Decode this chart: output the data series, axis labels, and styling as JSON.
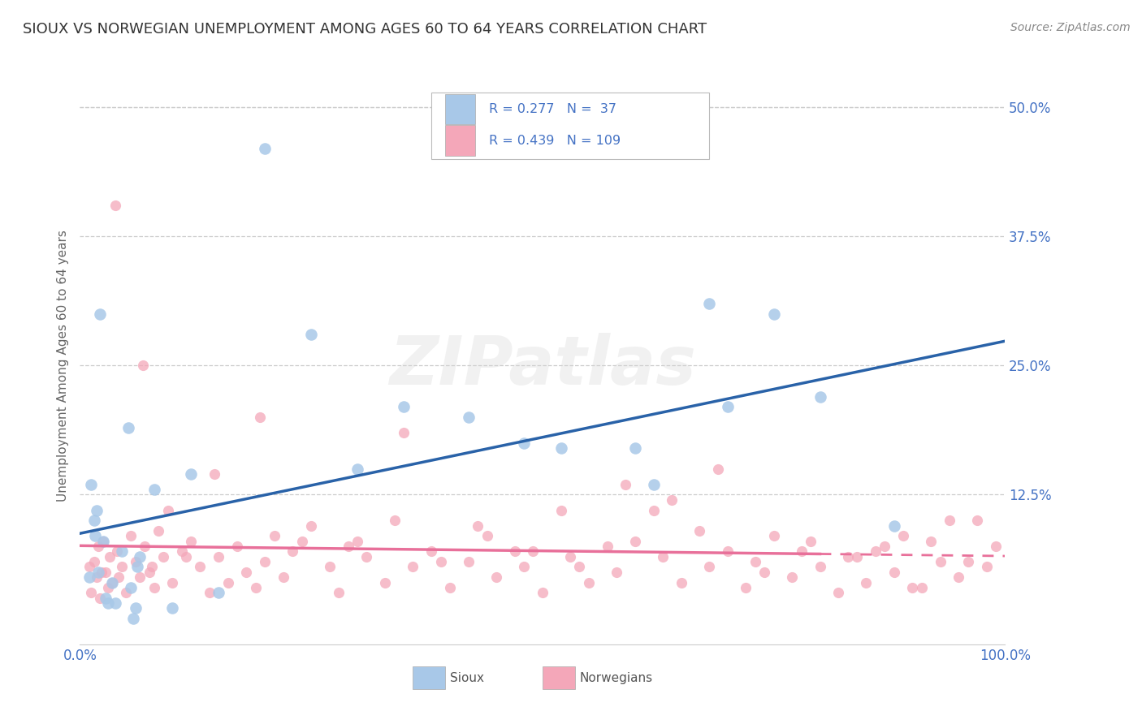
{
  "title": "SIOUX VS NORWEGIAN UNEMPLOYMENT AMONG AGES 60 TO 64 YEARS CORRELATION CHART",
  "source": "Source: ZipAtlas.com",
  "ylabel": "Unemployment Among Ages 60 to 64 years",
  "xlim": [
    0,
    100
  ],
  "ylim": [
    -2,
    52
  ],
  "background_color": "#ffffff",
  "watermark": "ZIPatlas",
  "legend_r_sioux": "0.277",
  "legend_n_sioux": "37",
  "legend_r_norw": "0.439",
  "legend_n_norw": "109",
  "sioux_color": "#A8C8E8",
  "norw_color": "#F4A7B9",
  "sioux_line_color": "#2962A8",
  "norw_line_color": "#E8709A",
  "sioux_points_x": [
    1.5,
    2.0,
    2.5,
    3.0,
    1.0,
    1.8,
    5.5,
    6.0,
    6.5,
    5.8,
    2.2,
    8.0,
    20.0,
    25.0,
    35.0,
    42.0,
    52.0,
    60.0,
    68.0,
    75.0,
    80.0,
    88.0,
    1.2,
    1.6,
    2.8,
    3.5,
    4.5,
    5.2,
    12.0,
    30.0,
    48.0,
    62.0,
    70.0,
    3.8,
    6.2,
    10.0,
    15.0
  ],
  "sioux_points_y": [
    10.0,
    5.0,
    8.0,
    2.0,
    4.5,
    11.0,
    3.5,
    1.5,
    6.5,
    0.5,
    30.0,
    13.0,
    46.0,
    28.0,
    21.0,
    20.0,
    17.0,
    17.0,
    31.0,
    30.0,
    22.0,
    9.5,
    13.5,
    8.5,
    2.5,
    4.0,
    7.0,
    19.0,
    14.5,
    15.0,
    17.5,
    13.5,
    21.0,
    2.0,
    5.5,
    1.5,
    3.0
  ],
  "norw_points_x": [
    1.0,
    1.2,
    1.5,
    1.8,
    2.0,
    2.2,
    2.5,
    2.8,
    3.0,
    3.2,
    3.5,
    4.0,
    4.5,
    5.0,
    5.5,
    6.0,
    6.5,
    7.0,
    7.5,
    8.0,
    8.5,
    9.0,
    10.0,
    11.0,
    12.0,
    13.0,
    14.0,
    15.0,
    16.0,
    17.0,
    18.0,
    19.0,
    20.0,
    21.0,
    22.0,
    23.0,
    25.0,
    27.0,
    28.0,
    30.0,
    31.0,
    33.0,
    35.0,
    36.0,
    38.0,
    40.0,
    42.0,
    44.0,
    45.0,
    47.0,
    48.0,
    50.0,
    52.0,
    53.0,
    55.0,
    57.0,
    58.0,
    60.0,
    62.0,
    63.0,
    65.0,
    67.0,
    68.0,
    70.0,
    72.0,
    73.0,
    75.0,
    77.0,
    78.0,
    80.0,
    82.0,
    84.0,
    85.0,
    87.0,
    88.0,
    90.0,
    92.0,
    93.0,
    95.0,
    97.0,
    98.0,
    3.8,
    6.8,
    9.5,
    14.5,
    19.5,
    24.0,
    29.0,
    34.0,
    39.0,
    43.0,
    49.0,
    54.0,
    59.0,
    64.0,
    69.0,
    74.0,
    79.0,
    83.0,
    86.0,
    89.0,
    91.0,
    94.0,
    96.0,
    99.0,
    2.3,
    4.2,
    7.8,
    11.5
  ],
  "norw_points_y": [
    5.5,
    3.0,
    6.0,
    4.5,
    7.5,
    2.5,
    8.0,
    5.0,
    3.5,
    6.5,
    4.0,
    7.0,
    5.5,
    3.0,
    8.5,
    6.0,
    4.5,
    7.5,
    5.0,
    3.5,
    9.0,
    6.5,
    4.0,
    7.0,
    8.0,
    5.5,
    3.0,
    6.5,
    4.0,
    7.5,
    5.0,
    3.5,
    6.0,
    8.5,
    4.5,
    7.0,
    9.5,
    5.5,
    3.0,
    8.0,
    6.5,
    4.0,
    18.5,
    5.5,
    7.0,
    3.5,
    6.0,
    8.5,
    4.5,
    7.0,
    5.5,
    3.0,
    11.0,
    6.5,
    4.0,
    7.5,
    5.0,
    8.0,
    11.0,
    6.5,
    4.0,
    9.0,
    5.5,
    7.0,
    3.5,
    6.0,
    8.5,
    4.5,
    7.0,
    5.5,
    3.0,
    6.5,
    4.0,
    7.5,
    5.0,
    3.5,
    8.0,
    6.0,
    4.5,
    10.0,
    5.5,
    40.5,
    25.0,
    11.0,
    14.5,
    20.0,
    8.0,
    7.5,
    10.0,
    6.0,
    9.5,
    7.0,
    5.5,
    13.5,
    12.0,
    15.0,
    5.0,
    8.0,
    6.5,
    7.0,
    8.5,
    3.5,
    10.0,
    6.0,
    7.5,
    5.0,
    4.5,
    5.5,
    6.5
  ]
}
